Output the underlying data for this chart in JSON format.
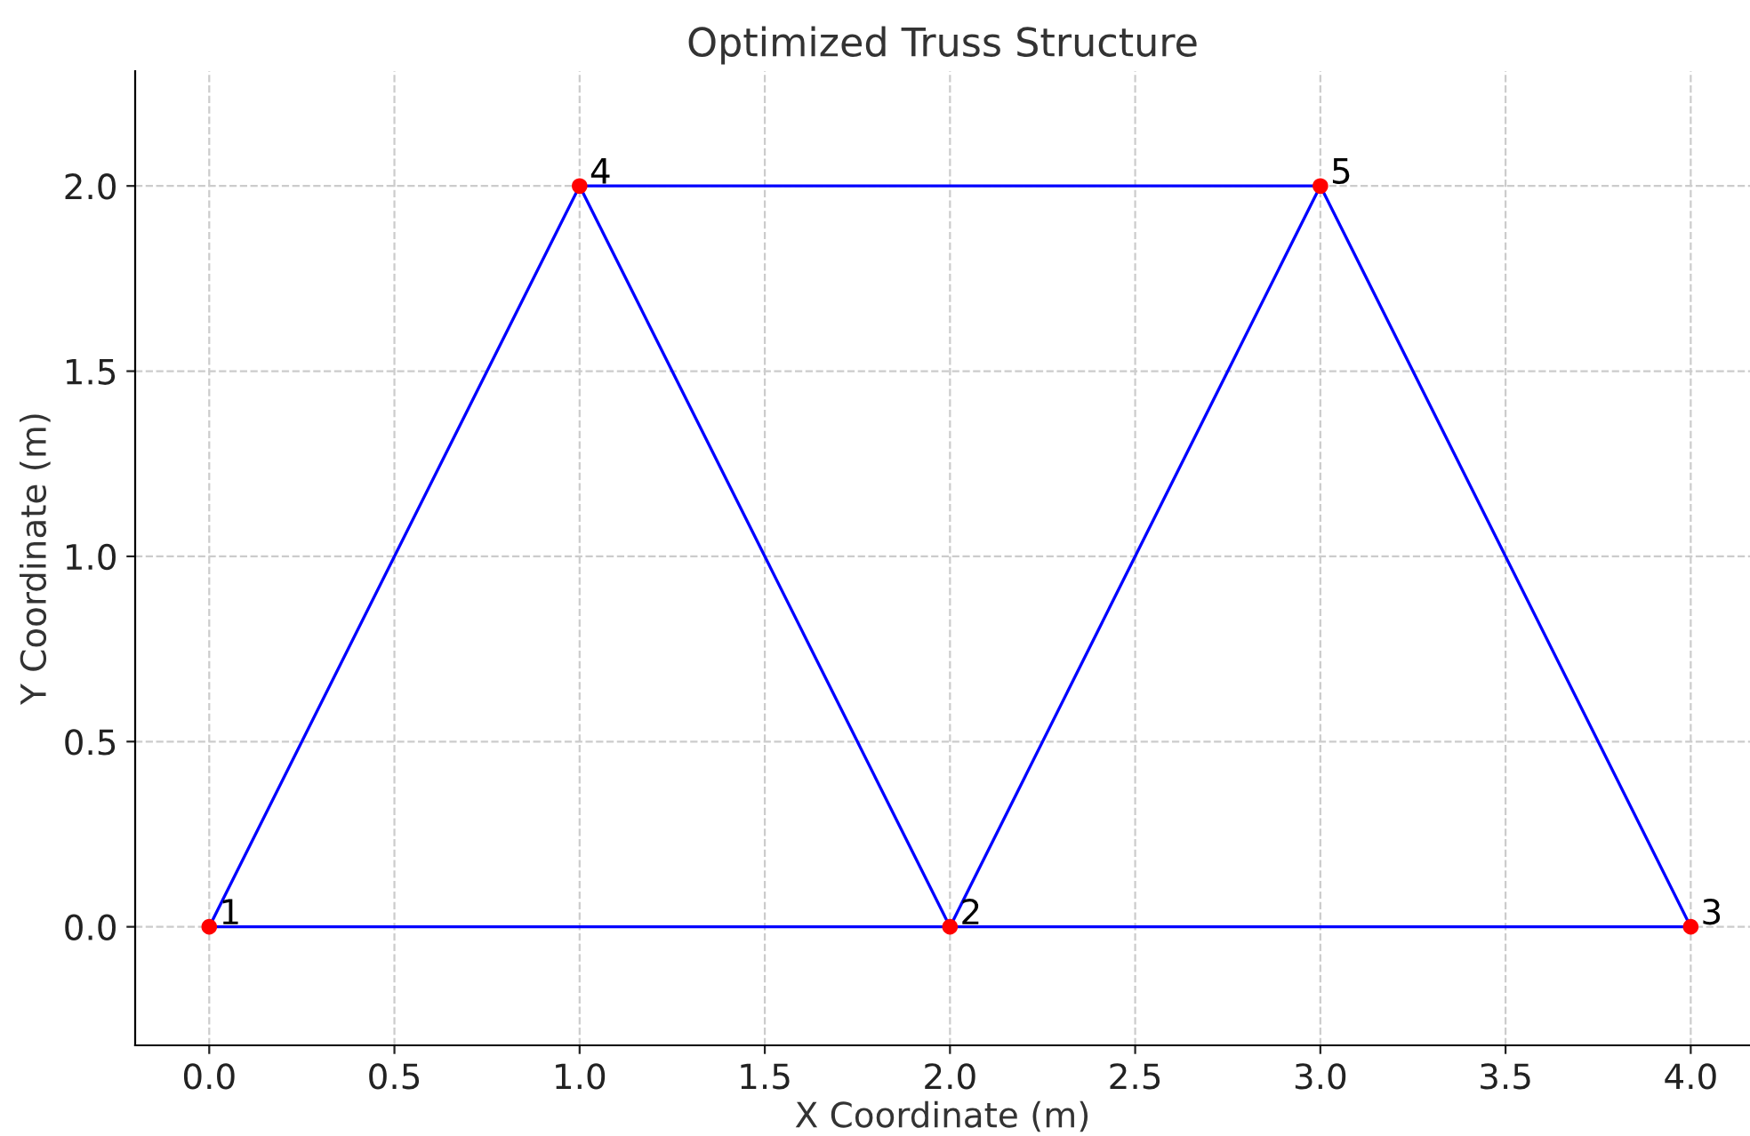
{
  "chart_data": {
    "type": "line",
    "title": "Optimized Truss Structure",
    "xlabel": "X Coordinate (m)",
    "ylabel": "Y Coordinate (m)",
    "series": [
      {
        "color": "#0000ff",
        "x": [
          0,
          2
        ],
        "values": [
          0,
          0
        ]
      },
      {
        "color": "#0000ff",
        "x": [
          0,
          1
        ],
        "values": [
          0,
          2
        ]
      },
      {
        "color": "#0000ff",
        "x": [
          1,
          2
        ],
        "values": [
          2,
          0
        ]
      },
      {
        "color": "#0000ff",
        "x": [
          1,
          3
        ],
        "values": [
          2,
          2
        ]
      },
      {
        "color": "#0000ff",
        "x": [
          2,
          3
        ],
        "values": [
          0,
          2
        ]
      },
      {
        "color": "#0000ff",
        "x": [
          3,
          4
        ],
        "values": [
          2,
          0
        ]
      },
      {
        "color": "#0000ff",
        "x": [
          2,
          4
        ],
        "values": [
          0,
          0
        ]
      },
      {
        "type": "scatter",
        "color": "#ff0000",
        "marker": "circle",
        "x": [
          0,
          2,
          4,
          1,
          3
        ],
        "values": [
          0,
          0,
          0,
          2,
          2
        ]
      }
    ],
    "annotations": [
      {
        "text": "1",
        "x": 0,
        "y": 0
      },
      {
        "text": "2",
        "x": 2,
        "y": 0
      },
      {
        "text": "3",
        "x": 4,
        "y": 0
      },
      {
        "text": "4",
        "x": 1,
        "y": 2
      },
      {
        "text": "5",
        "x": 3,
        "y": 2
      }
    ],
    "xlim": [
      -0.2,
      4.16
    ],
    "ylim": [
      -0.32,
      2.31
    ],
    "xticks": [
      {
        "value": 0,
        "label": "0.0"
      },
      {
        "value": 0.5,
        "label": "0.5"
      },
      {
        "value": 1,
        "label": "1.0"
      },
      {
        "value": 1.5,
        "label": "1.5"
      },
      {
        "value": 2,
        "label": "2.0"
      },
      {
        "value": 2.5,
        "label": "2.5"
      },
      {
        "value": 3,
        "label": "3.0"
      },
      {
        "value": 3.5,
        "label": "3.5"
      },
      {
        "value": 4,
        "label": "4.0"
      }
    ],
    "yticks": [
      {
        "value": 0,
        "label": "0.0"
      },
      {
        "value": 0.5,
        "label": "0.5"
      },
      {
        "value": 1,
        "label": "1.0"
      },
      {
        "value": 1.5,
        "label": "1.5"
      },
      {
        "value": 2,
        "label": "2.0"
      }
    ],
    "grid": true,
    "line_style": "solid"
  }
}
